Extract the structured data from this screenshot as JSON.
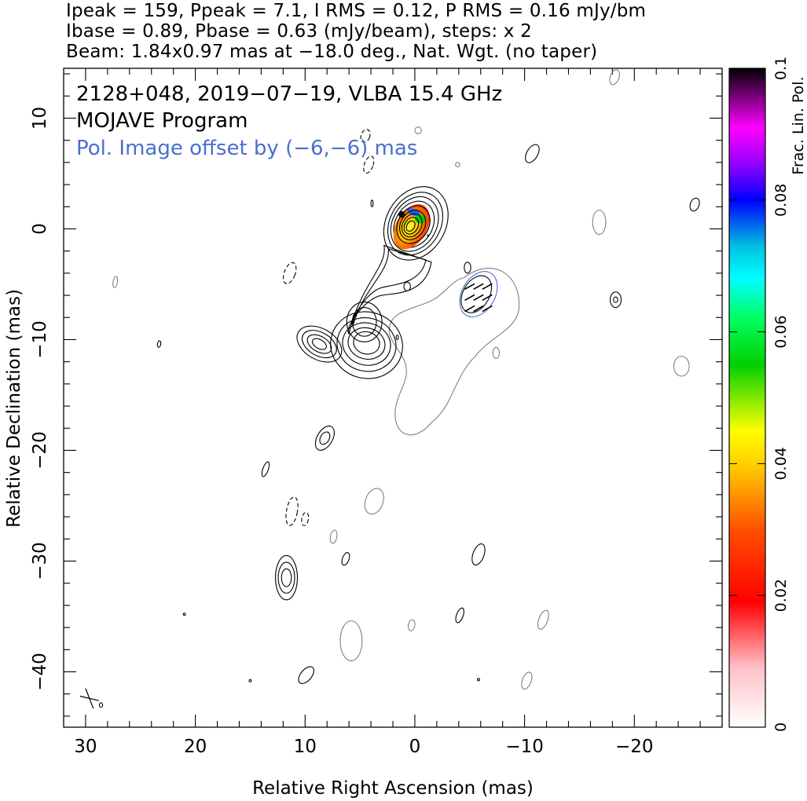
{
  "header": {
    "line1": "Ipeak = 159, Ppeak = 7.1, I RMS = 0.12, P RMS = 0.16 mJy/bm",
    "line2": "Ibase = 0.89, Pbase = 0.63 (mJy/beam), steps: x 2",
    "line3": "Beam: 1.84x0.97 mas at −18.0 deg., Nat. Wgt. (no taper)"
  },
  "annotations": {
    "source_line": "2128+048, 2019−07−19, VLBA 15.4 GHz",
    "program_line": "MOJAVE Program",
    "offset_line": "Pol. Image offset by (−6,−6) mas"
  },
  "colors": {
    "total_intensity_contours": "#000000",
    "polarization_contours": "#808080",
    "pol_outline": "#4a6fd0",
    "offset_text": "#4a6fd0"
  },
  "chart_data": {
    "type": "contour",
    "xlabel": "Relative Right Ascension (mas)",
    "ylabel": "Relative Declination (mas)",
    "xlim": [
      32,
      -28
    ],
    "ylim": [
      -45,
      14.5
    ],
    "x_ticks": [
      30,
      20,
      10,
      0,
      -10,
      -20
    ],
    "x_tick_labels": [
      "30",
      "20",
      "10",
      "0",
      "−10",
      "−20"
    ],
    "y_ticks": [
      10,
      0,
      -10,
      -20,
      -30,
      -40
    ],
    "y_tick_labels": [
      "10",
      "0",
      "−10",
      "−20",
      "−30",
      "−40"
    ],
    "colorbar": {
      "label": "Frac. Lin. Pol.",
      "range": [
        0,
        0.1
      ],
      "ticks": [
        0,
        0.02,
        0.04,
        0.06,
        0.08,
        0.1
      ],
      "tick_labels": [
        "0",
        "0.02",
        "0.04",
        "0.06",
        "0.08",
        "0.1"
      ]
    },
    "core": {
      "x": 0,
      "y": 0
    },
    "jet_components": [
      {
        "x": 0,
        "y": 0,
        "levels": 9
      },
      {
        "x": -0.5,
        "y": -4.5,
        "levels": 3
      },
      {
        "x": 4.3,
        "y": -8.5,
        "levels": 4
      },
      {
        "x": 4.5,
        "y": -10.5,
        "levels": 5
      },
      {
        "x": 9,
        "y": -10.5,
        "levels": 4
      },
      {
        "x": 11.7,
        "y": -31.5,
        "levels": 3
      }
    ],
    "pol_image_offset": [
      -6,
      -6
    ]
  }
}
